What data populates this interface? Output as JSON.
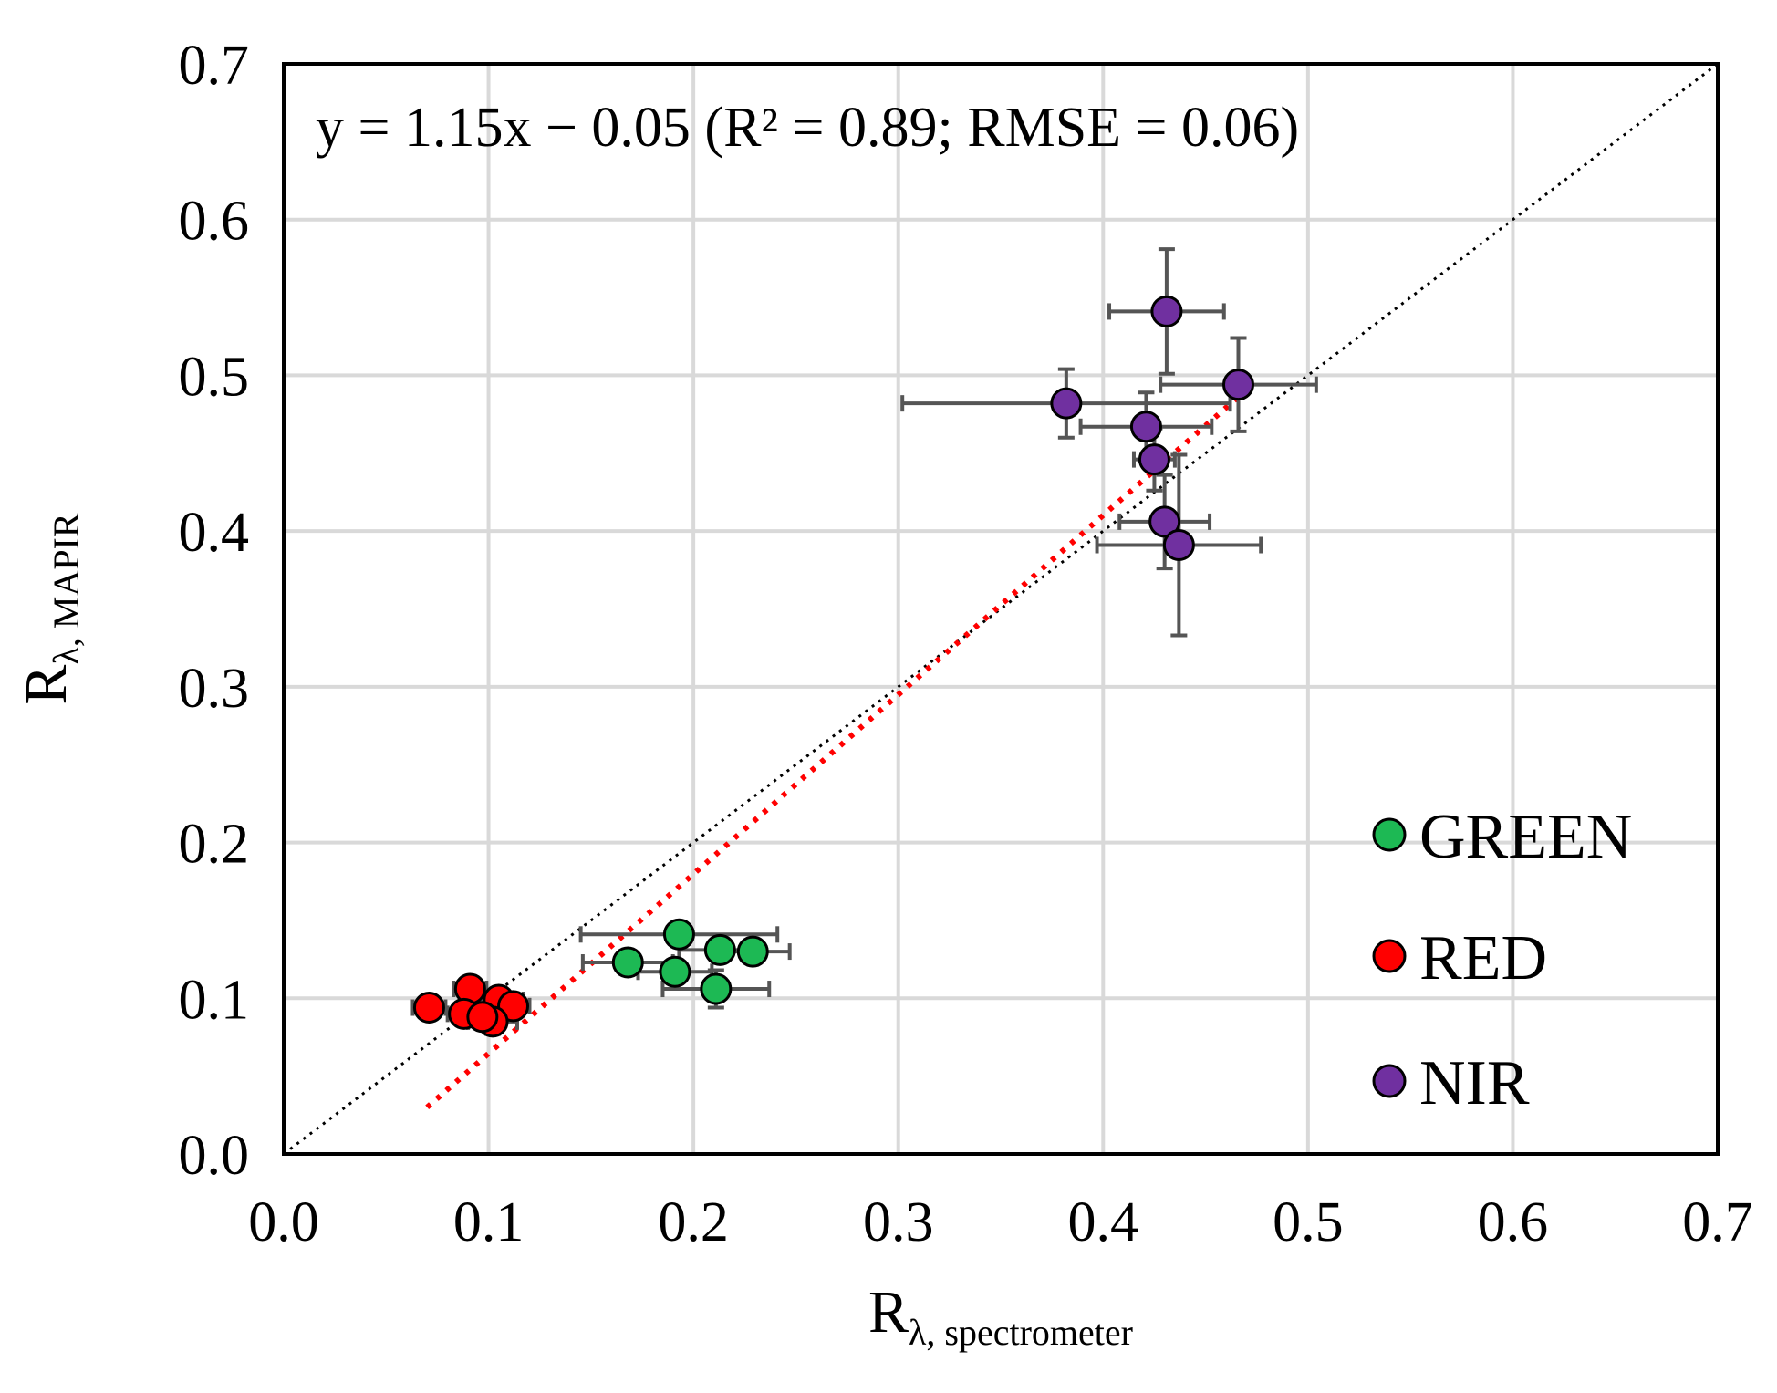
{
  "chart_data": {
    "type": "scatter",
    "xlabel": "R",
    "xlabel_sub": "λ, spectrometer",
    "ylabel": "R",
    "ylabel_sub": "λ, MAPIR",
    "xlim": [
      0.0,
      0.7
    ],
    "ylim": [
      0.0,
      0.7
    ],
    "x_ticks": [
      "0.0",
      "0.1",
      "0.2",
      "0.3",
      "0.4",
      "0.5",
      "0.6",
      "0.7"
    ],
    "y_ticks": [
      "0.0",
      "0.1",
      "0.2",
      "0.3",
      "0.4",
      "0.5",
      "0.6",
      "0.7"
    ],
    "grid": true,
    "legend_position": "bottom-right",
    "annotation": "y = 1.15x − 0.05 (R² = 0.89; RMSE = 0.06)",
    "reference_line": {
      "style": "dotted",
      "color": "#000000",
      "x": [
        0.0,
        0.7
      ],
      "y": [
        0.0,
        0.7
      ]
    },
    "fit_line": {
      "style": "dotted",
      "color": "#ff0000",
      "x": [
        0.07,
        0.465
      ],
      "y": [
        0.03,
        0.485
      ]
    },
    "series": [
      {
        "name": "GREEN",
        "color": "#1db954",
        "points": [
          {
            "x": 0.193,
            "y": 0.141,
            "xerr": 0.048,
            "yerr": 0.004
          },
          {
            "x": 0.213,
            "y": 0.131,
            "xerr": 0.02,
            "yerr": 0.004
          },
          {
            "x": 0.229,
            "y": 0.13,
            "xerr": 0.018,
            "yerr": 0.004
          },
          {
            "x": 0.168,
            "y": 0.123,
            "xerr": 0.022,
            "yerr": 0.004
          },
          {
            "x": 0.191,
            "y": 0.117,
            "xerr": 0.018,
            "yerr": 0.006
          },
          {
            "x": 0.211,
            "y": 0.106,
            "xerr": 0.026,
            "yerr": 0.012
          }
        ]
      },
      {
        "name": "RED",
        "color": "#ff0000",
        "points": [
          {
            "x": 0.091,
            "y": 0.106,
            "xerr": 0.008,
            "yerr": 0.004
          },
          {
            "x": 0.105,
            "y": 0.099,
            "xerr": 0.012,
            "yerr": 0.006
          },
          {
            "x": 0.071,
            "y": 0.094,
            "xerr": 0.008,
            "yerr": 0.004
          },
          {
            "x": 0.112,
            "y": 0.095,
            "xerr": 0.008,
            "yerr": 0.004
          },
          {
            "x": 0.088,
            "y": 0.09,
            "xerr": 0.008,
            "yerr": 0.004
          },
          {
            "x": 0.102,
            "y": 0.085,
            "xerr": 0.012,
            "yerr": 0.008
          },
          {
            "x": 0.097,
            "y": 0.088,
            "xerr": 0.01,
            "yerr": 0.006
          }
        ]
      },
      {
        "name": "NIR",
        "color": "#7030a0",
        "points": [
          {
            "x": 0.431,
            "y": 0.541,
            "xerr": 0.028,
            "yerr": 0.04
          },
          {
            "x": 0.466,
            "y": 0.494,
            "xerr": 0.038,
            "yerr": 0.03
          },
          {
            "x": 0.382,
            "y": 0.482,
            "xerr": 0.08,
            "yerr": 0.022
          },
          {
            "x": 0.421,
            "y": 0.467,
            "xerr": 0.032,
            "yerr": 0.022
          },
          {
            "x": 0.425,
            "y": 0.446,
            "xerr": 0.01,
            "yerr": 0.02
          },
          {
            "x": 0.43,
            "y": 0.406,
            "xerr": 0.022,
            "yerr": 0.03
          },
          {
            "x": 0.437,
            "y": 0.391,
            "xerr": 0.04,
            "yerr": 0.058
          }
        ]
      }
    ]
  }
}
